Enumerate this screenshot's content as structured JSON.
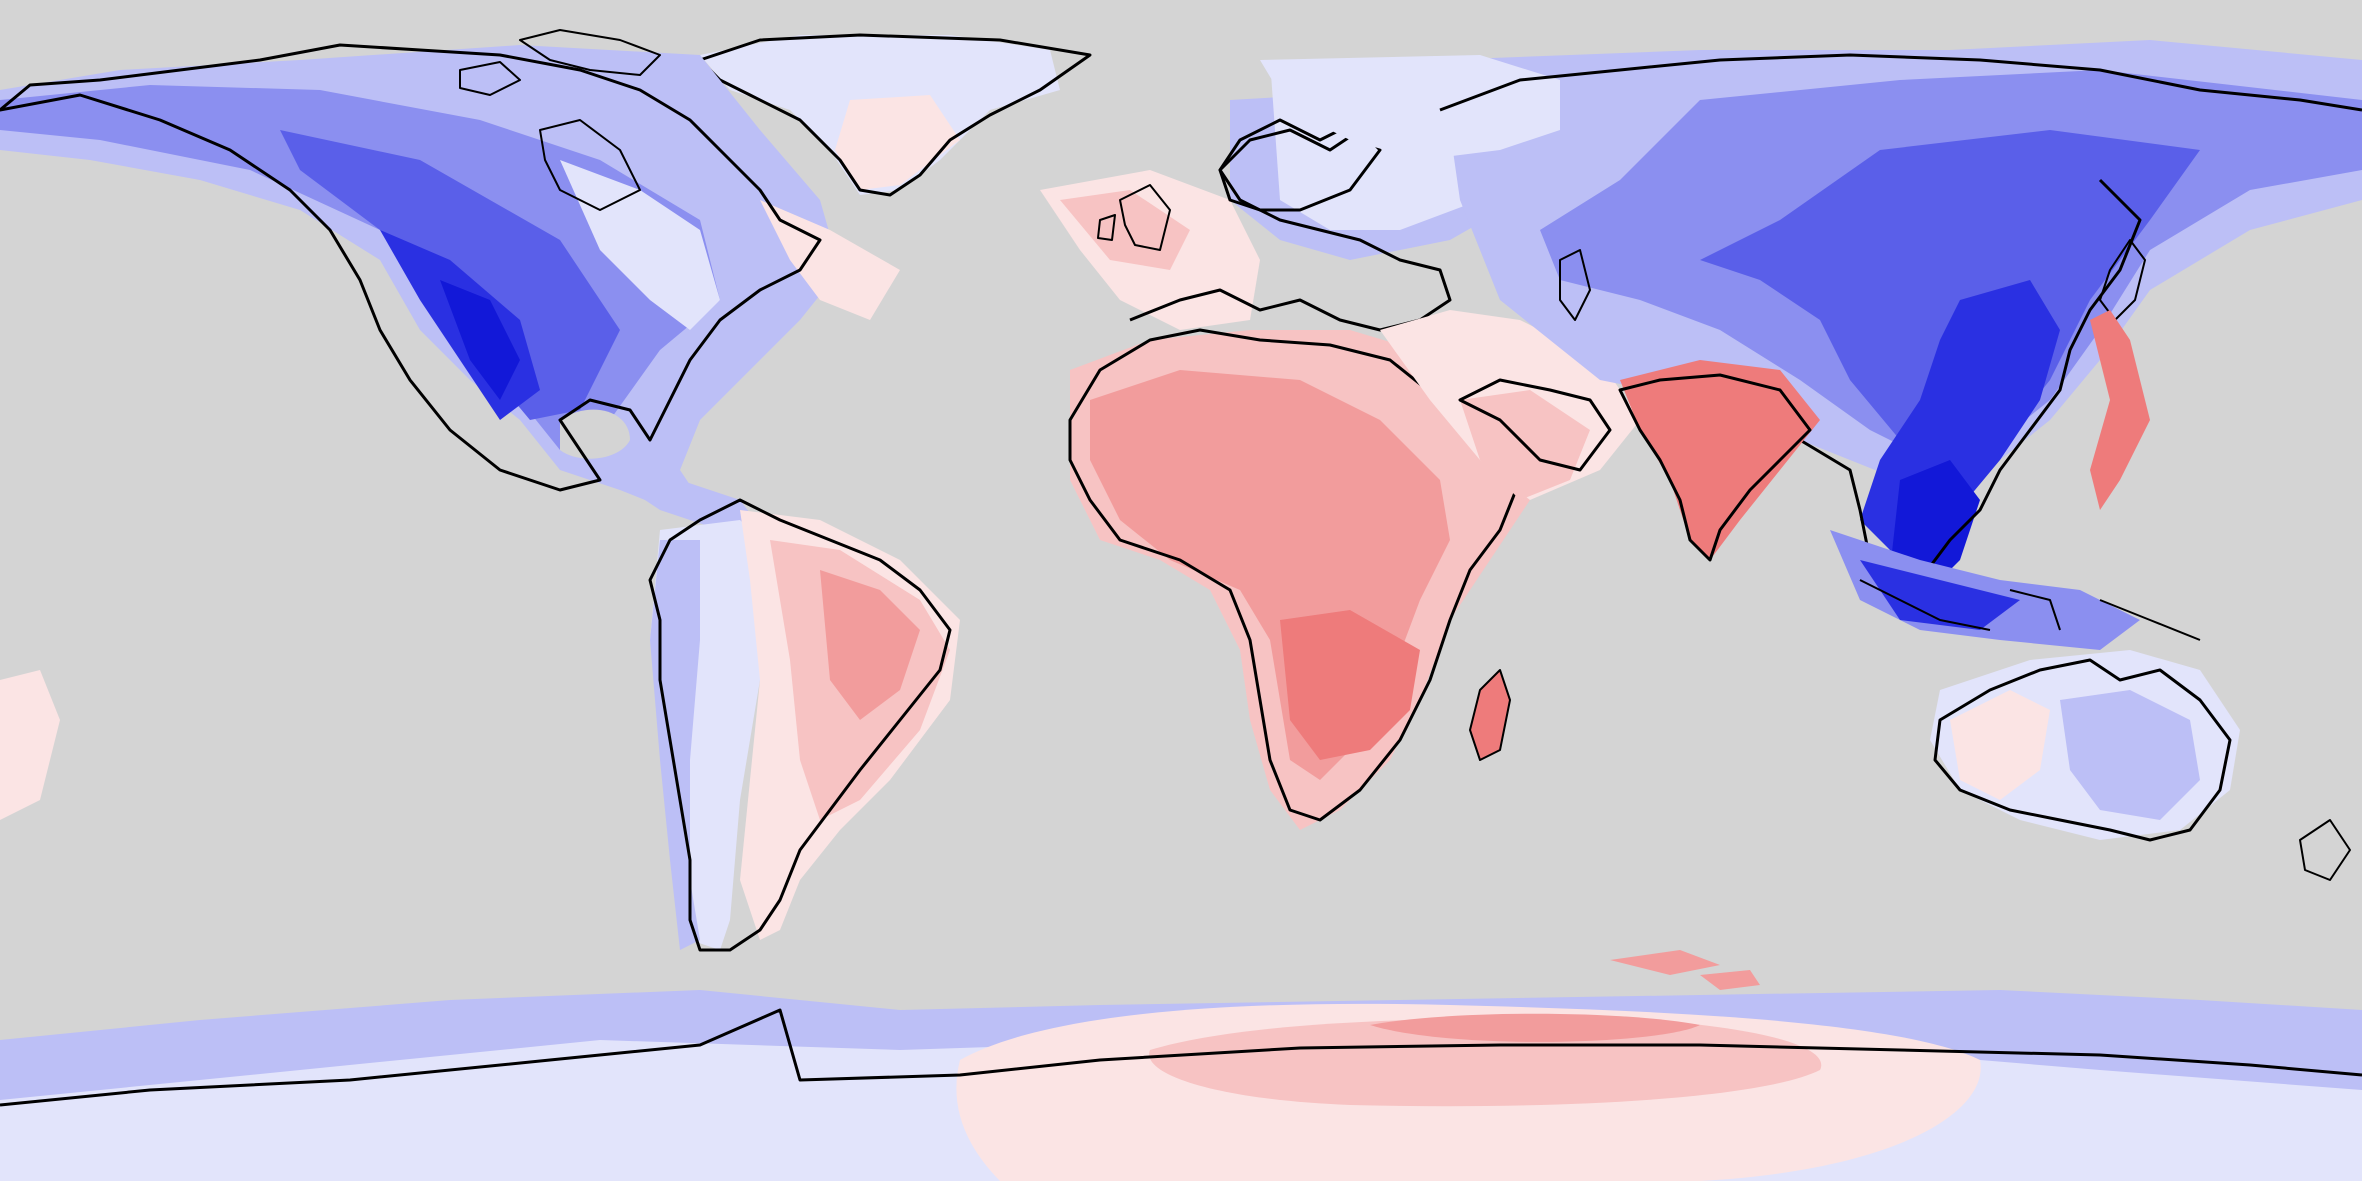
{
  "map": {
    "projection": "equirectangular",
    "background_color": "#d4d4d4",
    "coastline_color": "#000000",
    "legend": [],
    "palette": {
      "blue_1": "#e2e4fb",
      "blue_2": "#bcbff6",
      "blue_3": "#8b8ff0",
      "blue_4": "#5a5fe9",
      "blue_5": "#2a30e2",
      "blue_6": "#1218d8",
      "red_1": "#fbe4e4",
      "red_2": "#f7c3c3",
      "red_3": "#f29c9c",
      "red_4": "#ee7b7b",
      "red_5": "#e65a5a"
    },
    "regions": [
      {
        "name": "north-america",
        "signal": "negative"
      },
      {
        "name": "greenland",
        "signal": "neutral"
      },
      {
        "name": "central-america",
        "signal": "negative"
      },
      {
        "name": "south-america",
        "signal": "mixed"
      },
      {
        "name": "europe",
        "signal": "mixed"
      },
      {
        "name": "africa",
        "signal": "positive"
      },
      {
        "name": "middle-east",
        "signal": "positive"
      },
      {
        "name": "india",
        "signal": "positive"
      },
      {
        "name": "asia",
        "signal": "negative"
      },
      {
        "name": "southeast-asia",
        "signal": "negative"
      },
      {
        "name": "australia",
        "signal": "mixed"
      },
      {
        "name": "antarctica",
        "signal": "mixed"
      }
    ]
  }
}
